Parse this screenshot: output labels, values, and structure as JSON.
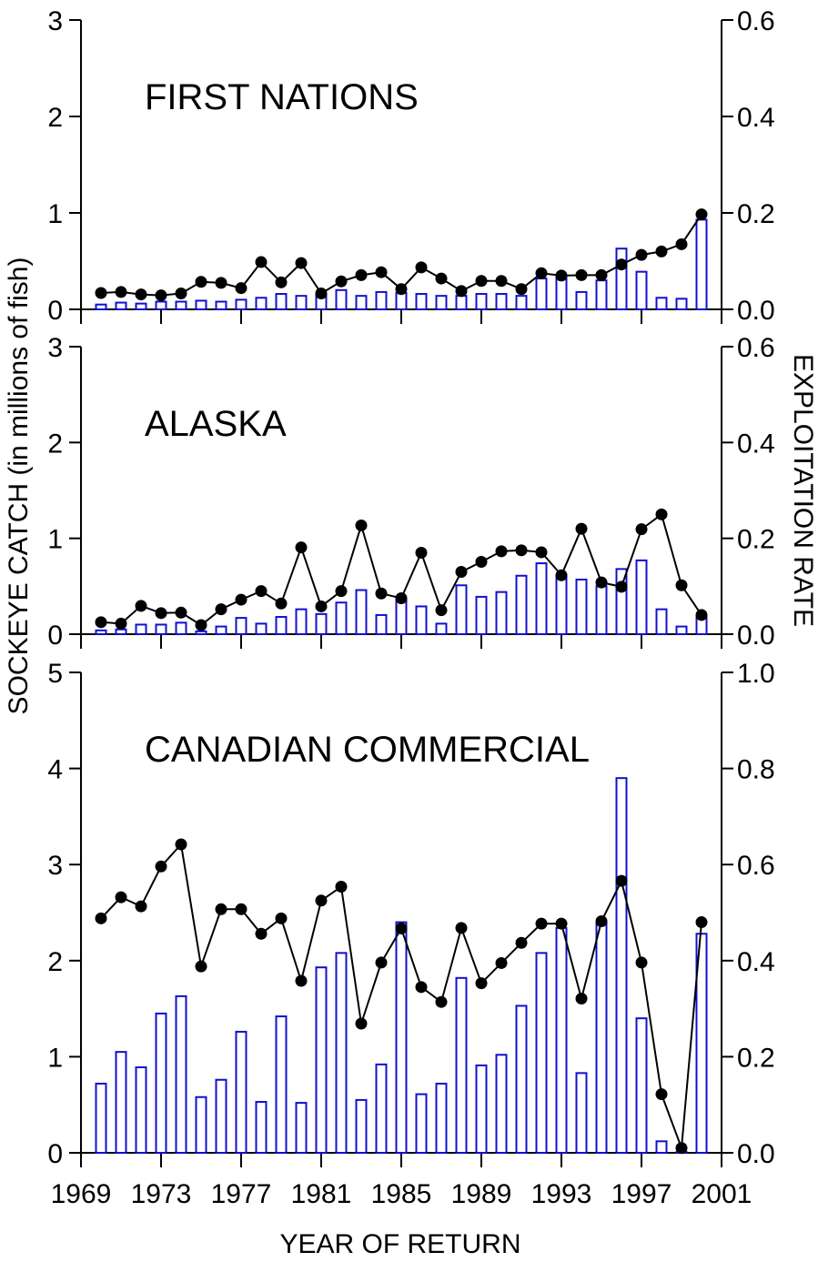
{
  "chart_data": {
    "type": "bar+line",
    "years": [
      1970,
      1971,
      1972,
      1973,
      1974,
      1975,
      1976,
      1977,
      1978,
      1979,
      1980,
      1981,
      1982,
      1983,
      1984,
      1985,
      1986,
      1987,
      1988,
      1989,
      1990,
      1991,
      1992,
      1993,
      1994,
      1995,
      1996,
      1997,
      1998,
      1999,
      2000
    ],
    "x_ticks": [
      1969,
      1973,
      1977,
      1981,
      1985,
      1989,
      1993,
      1997,
      2001
    ],
    "x_tick_labels": [
      "1969",
      "1973",
      "1977",
      "1981",
      "1985",
      "1989",
      "1993",
      "1997",
      "2001"
    ],
    "xlim": [
      1969,
      2001
    ],
    "xlabel": "YEAR OF RETURN",
    "ylabel_left": "SOCKEYE CATCH (in millions of fish)",
    "ylabel_right": "EXPLOITATION RATE",
    "colors": {
      "bar": "#1010d0",
      "line": "#000000"
    },
    "panels": [
      {
        "title": "FIRST NATIONS",
        "ylim_left": [
          0,
          3
        ],
        "left_ticks": [
          "0",
          "1",
          "2",
          "3"
        ],
        "ylim_right": [
          0,
          0.6
        ],
        "right_ticks": [
          "0.0",
          "0.2",
          "0.4",
          "0.6"
        ],
        "catch": [
          0.05,
          0.07,
          0.06,
          0.08,
          0.08,
          0.09,
          0.08,
          0.1,
          0.12,
          0.16,
          0.14,
          0.16,
          0.2,
          0.14,
          0.18,
          0.17,
          0.16,
          0.14,
          0.14,
          0.16,
          0.16,
          0.14,
          0.32,
          0.35,
          0.18,
          0.3,
          0.63,
          0.39,
          0.12,
          0.11,
          0.93
        ],
        "exploitation_rate": [
          0.034,
          0.036,
          0.031,
          0.029,
          0.033,
          0.057,
          0.055,
          0.044,
          0.098,
          0.056,
          0.096,
          0.033,
          0.058,
          0.071,
          0.077,
          0.042,
          0.087,
          0.064,
          0.038,
          0.059,
          0.059,
          0.042,
          0.075,
          0.07,
          0.071,
          0.071,
          0.093,
          0.113,
          0.12,
          0.135,
          0.197
        ]
      },
      {
        "title": "ALASKA",
        "ylim_left": [
          0,
          3
        ],
        "left_ticks": [
          "0",
          "1",
          "2",
          "3"
        ],
        "ylim_right": [
          0,
          0.6
        ],
        "right_ticks": [
          "0.0",
          "0.2",
          "0.4",
          "0.6"
        ],
        "catch": [
          0.04,
          0.05,
          0.1,
          0.1,
          0.12,
          0.03,
          0.08,
          0.17,
          0.11,
          0.18,
          0.26,
          0.21,
          0.33,
          0.46,
          0.2,
          0.37,
          0.29,
          0.11,
          0.51,
          0.39,
          0.44,
          0.61,
          0.74,
          0.61,
          0.57,
          0.5,
          0.68,
          0.77,
          0.26,
          0.08,
          0.18
        ],
        "exploitation_rate": [
          0.025,
          0.022,
          0.059,
          0.044,
          0.045,
          0.019,
          0.052,
          0.072,
          0.09,
          0.064,
          0.181,
          0.058,
          0.09,
          0.227,
          0.085,
          0.075,
          0.17,
          0.05,
          0.13,
          0.151,
          0.173,
          0.175,
          0.171,
          0.123,
          0.22,
          0.108,
          0.099,
          0.219,
          0.25,
          0.102,
          0.04
        ]
      },
      {
        "title": "CANADIAN COMMERCIAL",
        "ylim_left": [
          0,
          5
        ],
        "left_ticks": [
          "0",
          "1",
          "2",
          "3",
          "4",
          "5"
        ],
        "ylim_right": [
          0,
          1.0
        ],
        "right_ticks": [
          "0.0",
          "0.2",
          "0.4",
          "0.6",
          "0.8",
          "1.0"
        ],
        "catch": [
          0.72,
          1.05,
          0.89,
          1.45,
          1.63,
          0.58,
          0.76,
          1.26,
          0.53,
          1.42,
          0.52,
          1.93,
          2.08,
          0.55,
          0.92,
          2.4,
          0.61,
          0.72,
          1.82,
          0.91,
          1.02,
          1.53,
          2.08,
          2.34,
          0.83,
          2.4,
          3.9,
          1.4,
          0.12,
          0.01,
          2.28
        ],
        "exploitation_rate": [
          0.488,
          0.532,
          0.513,
          0.596,
          0.642,
          0.388,
          0.507,
          0.507,
          0.456,
          0.488,
          0.358,
          0.525,
          0.554,
          0.269,
          0.396,
          0.467,
          0.345,
          0.314,
          0.468,
          0.353,
          0.395,
          0.437,
          0.477,
          0.477,
          0.321,
          0.482,
          0.566,
          0.396,
          0.122,
          0.01,
          0.48
        ]
      }
    ]
  }
}
